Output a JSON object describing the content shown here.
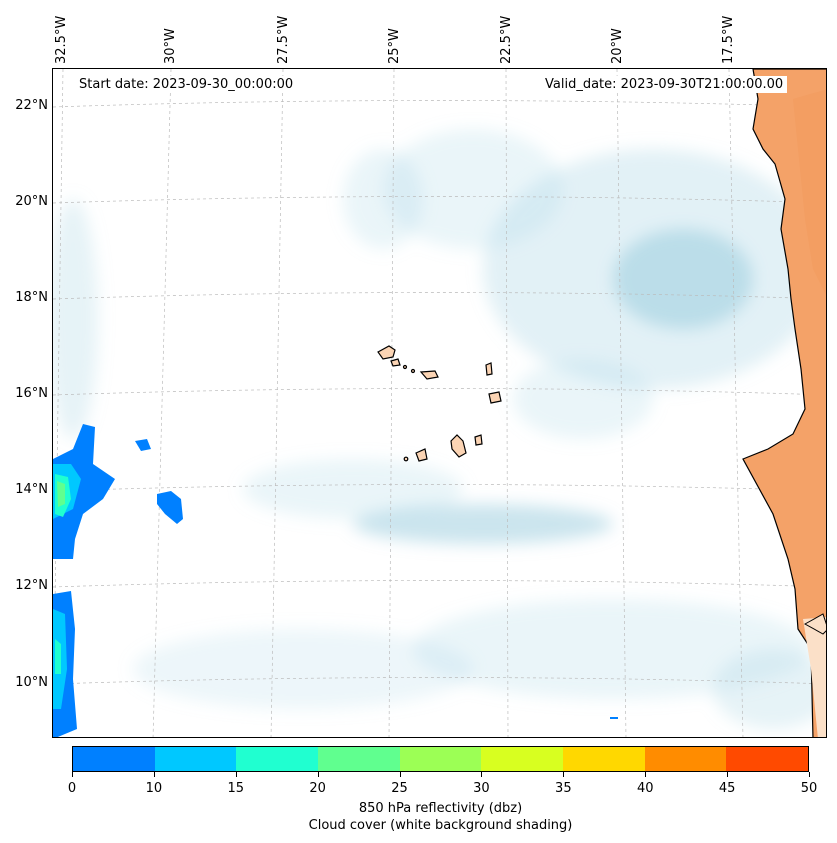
{
  "map": {
    "start_date": "Start date: 2023-09-30_00:00:00",
    "valid_date": "Valid_date: 2023-09-30T21:00:00.00",
    "lon_labels": [
      "32.5°W",
      "30°W",
      "27.5°W",
      "25°W",
      "22.5°W",
      "20°W",
      "17.5°W"
    ],
    "lat_labels": [
      "22°N",
      "20°N",
      "18°N",
      "16°N",
      "14°N",
      "12°N",
      "10°N"
    ],
    "land_color": "#f4a268",
    "cloud_color": "#add8e6"
  },
  "colorbar": {
    "colors": [
      "#0080ff",
      "#00c8ff",
      "#20ffd0",
      "#60ff8f",
      "#9cff55",
      "#d8ff20",
      "#ffd800",
      "#ff8c00",
      "#ff4a00"
    ],
    "ticks": [
      "0",
      "10",
      "15",
      "20",
      "25",
      "30",
      "35",
      "40",
      "45",
      "50"
    ],
    "label": "850 hPa reflectivity (dbz)",
    "sublabel": "Cloud cover (white background shading)"
  }
}
